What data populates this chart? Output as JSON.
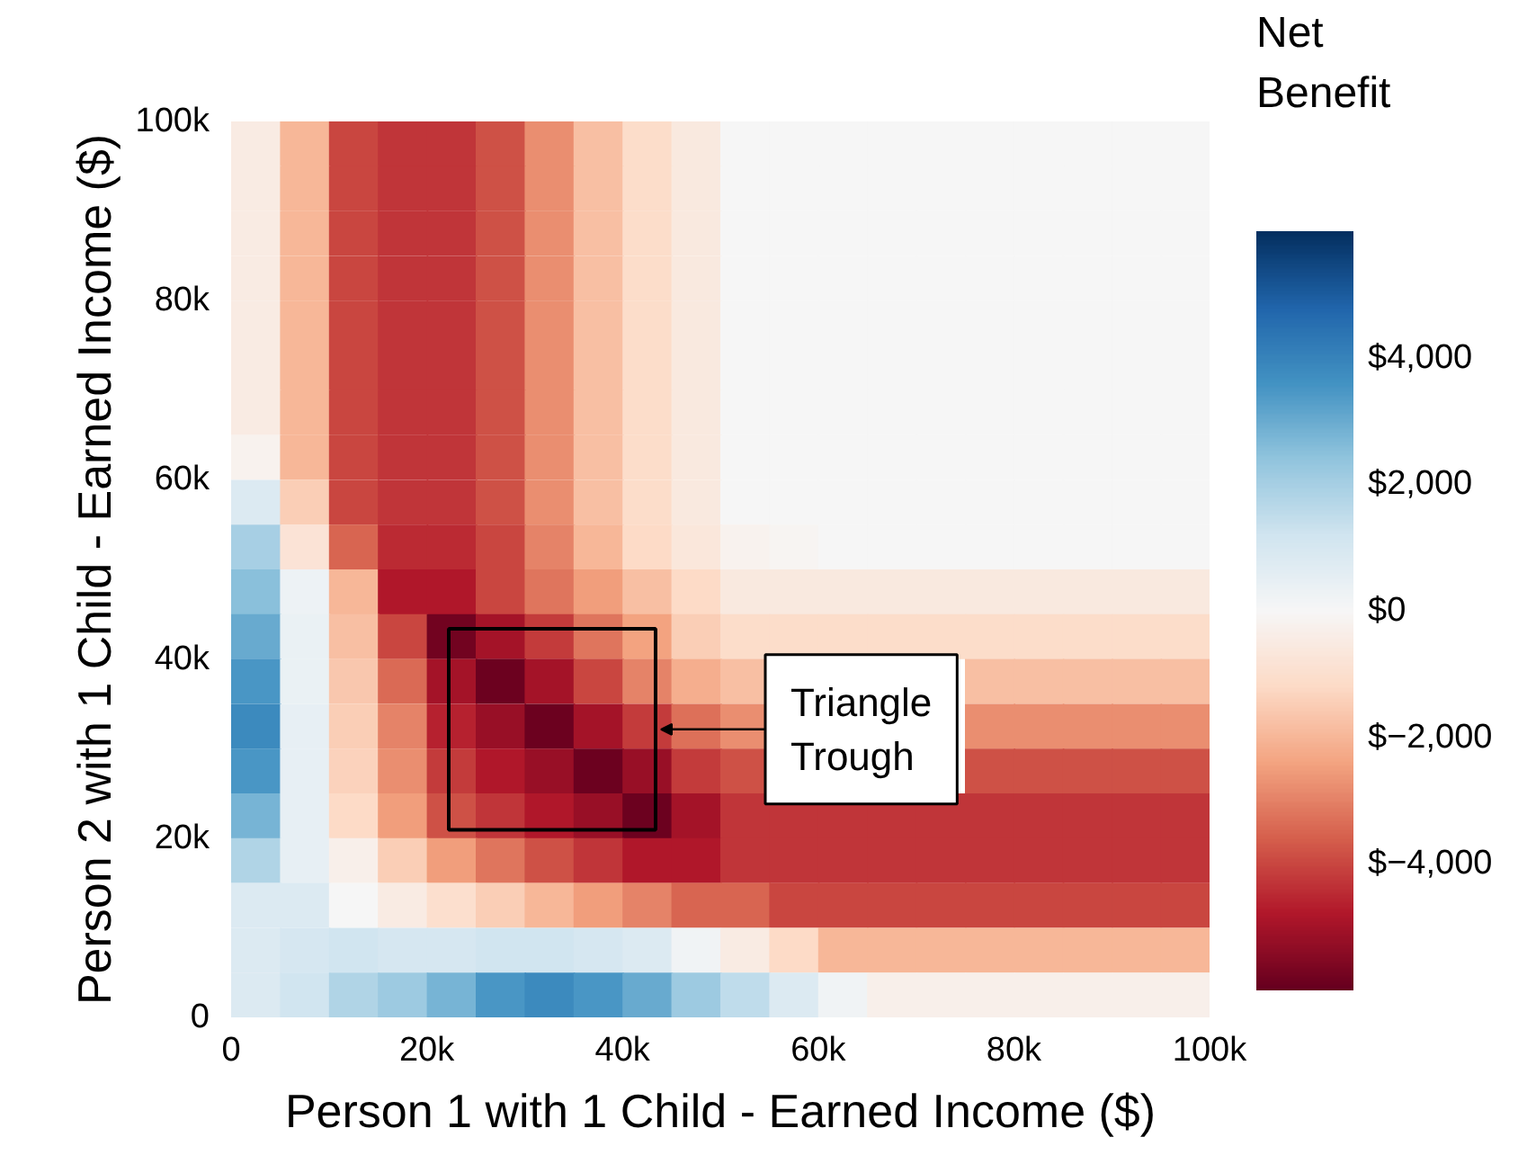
{
  "chart_data": {
    "type": "heatmap",
    "xlabel": "Person 1 with 1 Child - Earned Income ($)",
    "ylabel": "Person 2 with 1 Child - Earned Income ($)",
    "clabel": "Net\nBenefit",
    "x": [
      2500,
      7500,
      12500,
      17500,
      22500,
      27500,
      32500,
      37500,
      42500,
      47500,
      52500,
      57500,
      62500,
      67500,
      72500,
      77500,
      82500,
      87500,
      92500,
      97500
    ],
    "y": [
      97500,
      92500,
      87500,
      82500,
      77500,
      72500,
      67500,
      62500,
      57500,
      52500,
      47500,
      42500,
      37500,
      32500,
      27500,
      22500,
      17500,
      12500,
      7500,
      2500
    ],
    "cells": [
      [
        -500,
        -2000,
        -4000,
        -4300,
        -4300,
        -3800,
        -2800,
        -1800,
        -1100,
        -600,
        0,
        0,
        0,
        0,
        0,
        0,
        0,
        0,
        0,
        0
      ],
      [
        -500,
        -2000,
        -4000,
        -4300,
        -4300,
        -3800,
        -2800,
        -1800,
        -1100,
        -600,
        0,
        0,
        0,
        0,
        0,
        0,
        0,
        0,
        0,
        0
      ],
      [
        -500,
        -2000,
        -4000,
        -4300,
        -4300,
        -3800,
        -2800,
        -1800,
        -1100,
        -600,
        0,
        0,
        0,
        0,
        0,
        0,
        0,
        0,
        0,
        0
      ],
      [
        -500,
        -2000,
        -4000,
        -4300,
        -4300,
        -3800,
        -2800,
        -1800,
        -1100,
        -600,
        0,
        0,
        0,
        0,
        0,
        0,
        0,
        0,
        0,
        0
      ],
      [
        -500,
        -2000,
        -4000,
        -4300,
        -4300,
        -3800,
        -2800,
        -1800,
        -1100,
        -600,
        0,
        0,
        0,
        0,
        0,
        0,
        0,
        0,
        0,
        0
      ],
      [
        -500,
        -2000,
        -4000,
        -4300,
        -4300,
        -3800,
        -2800,
        -1800,
        -1100,
        -600,
        0,
        0,
        0,
        0,
        0,
        0,
        0,
        0,
        0,
        0
      ],
      [
        -500,
        -2000,
        -4000,
        -4300,
        -4300,
        -3800,
        -2800,
        -1800,
        -1100,
        -600,
        0,
        0,
        0,
        0,
        0,
        0,
        0,
        0,
        0,
        0
      ],
      [
        -200,
        -2000,
        -4000,
        -4300,
        -4300,
        -3800,
        -2800,
        -1800,
        -1100,
        -600,
        0,
        0,
        0,
        0,
        0,
        0,
        0,
        0,
        0,
        0
      ],
      [
        800,
        -1500,
        -4000,
        -4300,
        -4300,
        -3800,
        -2800,
        -1800,
        -1100,
        -600,
        0,
        0,
        0,
        0,
        0,
        0,
        0,
        0,
        0,
        0
      ],
      [
        2000,
        -800,
        -3500,
        -4500,
        -4500,
        -4000,
        -3000,
        -2000,
        -1200,
        -700,
        -200,
        -100,
        0,
        0,
        0,
        0,
        0,
        0,
        0,
        0
      ],
      [
        2500,
        300,
        -2000,
        -4800,
        -4800,
        -4000,
        -3200,
        -2500,
        -1800,
        -1200,
        -600,
        -600,
        -600,
        -600,
        -600,
        -600,
        -600,
        -600,
        -600,
        -600
      ],
      [
        3000,
        400,
        -1800,
        -4000,
        -5800,
        -5000,
        -4200,
        -3200,
        -2400,
        -1500,
        -1100,
        -1100,
        -1100,
        -1100,
        -1100,
        -1100,
        -1100,
        -1100,
        -1100,
        -1100
      ],
      [
        3500,
        400,
        -1600,
        -3400,
        -5000,
        -5900,
        -5000,
        -4000,
        -3000,
        -2200,
        -1800,
        null,
        null,
        null,
        null,
        -1800,
        -1800,
        -1800,
        -1800,
        -1800
      ],
      [
        3800,
        500,
        -1500,
        -3000,
        -4600,
        -5200,
        -5900,
        -5000,
        -4200,
        -3300,
        -2800,
        null,
        null,
        null,
        null,
        -2800,
        -2800,
        -2800,
        -2800,
        -2800
      ],
      [
        3500,
        500,
        -1400,
        -2800,
        -4200,
        -4800,
        -5200,
        -5900,
        -5200,
        -4200,
        -3800,
        null,
        null,
        null,
        null,
        -3800,
        -3800,
        -3800,
        -3800,
        -3800
      ],
      [
        2800,
        500,
        -1200,
        -2500,
        -3800,
        -4300,
        -4800,
        -5200,
        -5900,
        -5000,
        -4300,
        -4300,
        -4300,
        -4300,
        -4300,
        -4300,
        -4300,
        -4300,
        -4300,
        -4300
      ],
      [
        1800,
        500,
        -300,
        -1500,
        -2500,
        -3200,
        -3800,
        -4300,
        -4800,
        -4800,
        -4300,
        -4300,
        -4300,
        -4300,
        -4300,
        -4300,
        -4300,
        -4300,
        -4300,
        -4300
      ],
      [
        800,
        800,
        0,
        -500,
        -1000,
        -1500,
        -2000,
        -2500,
        -3000,
        -3500,
        -3500,
        -4000,
        -4000,
        -4000,
        -4000,
        -4000,
        -4000,
        -4000,
        -4000,
        -4000
      ],
      [
        800,
        1000,
        1200,
        1000,
        1000,
        1200,
        1200,
        1000,
        800,
        200,
        -500,
        -1200,
        -2000,
        -2000,
        -2000,
        -2000,
        -2000,
        -2000,
        -2000,
        -2000
      ],
      [
        800,
        1200,
        1800,
        2200,
        2800,
        3500,
        3800,
        3500,
        3000,
        2200,
        1500,
        800,
        200,
        -300,
        -300,
        -300,
        -300,
        -300,
        -300,
        -300
      ]
    ],
    "xlim": [
      0,
      100000
    ],
    "ylim": [
      0,
      100000
    ],
    "xticks": [
      0,
      {
        "value": 20000,
        "label": "20k"
      },
      {
        "value": 40000,
        "label": "40k"
      },
      {
        "value": 60000,
        "label": "60k"
      },
      {
        "value": 80000,
        "label": "80k"
      },
      {
        "value": 100000,
        "label": "100k"
      }
    ],
    "yticks": [
      0,
      {
        "value": 20000,
        "label": "20k"
      },
      {
        "value": 40000,
        "label": "40k"
      },
      {
        "value": 60000,
        "label": "60k"
      },
      {
        "value": 80000,
        "label": "80k"
      },
      {
        "value": 100000,
        "label": "100k"
      }
    ],
    "clim": [
      -6000,
      6000
    ],
    "cticks": [
      {
        "value": -4000,
        "label": "$−4,000"
      },
      {
        "value": -2000,
        "label": "$−2,000"
      },
      {
        "value": 0,
        "label": "$0"
      },
      {
        "value": 2000,
        "label": "$2,000"
      },
      {
        "value": 4000,
        "label": "$4,000"
      }
    ],
    "annotations": [
      "Triangle\nTrough"
    ],
    "grid": false
  }
}
